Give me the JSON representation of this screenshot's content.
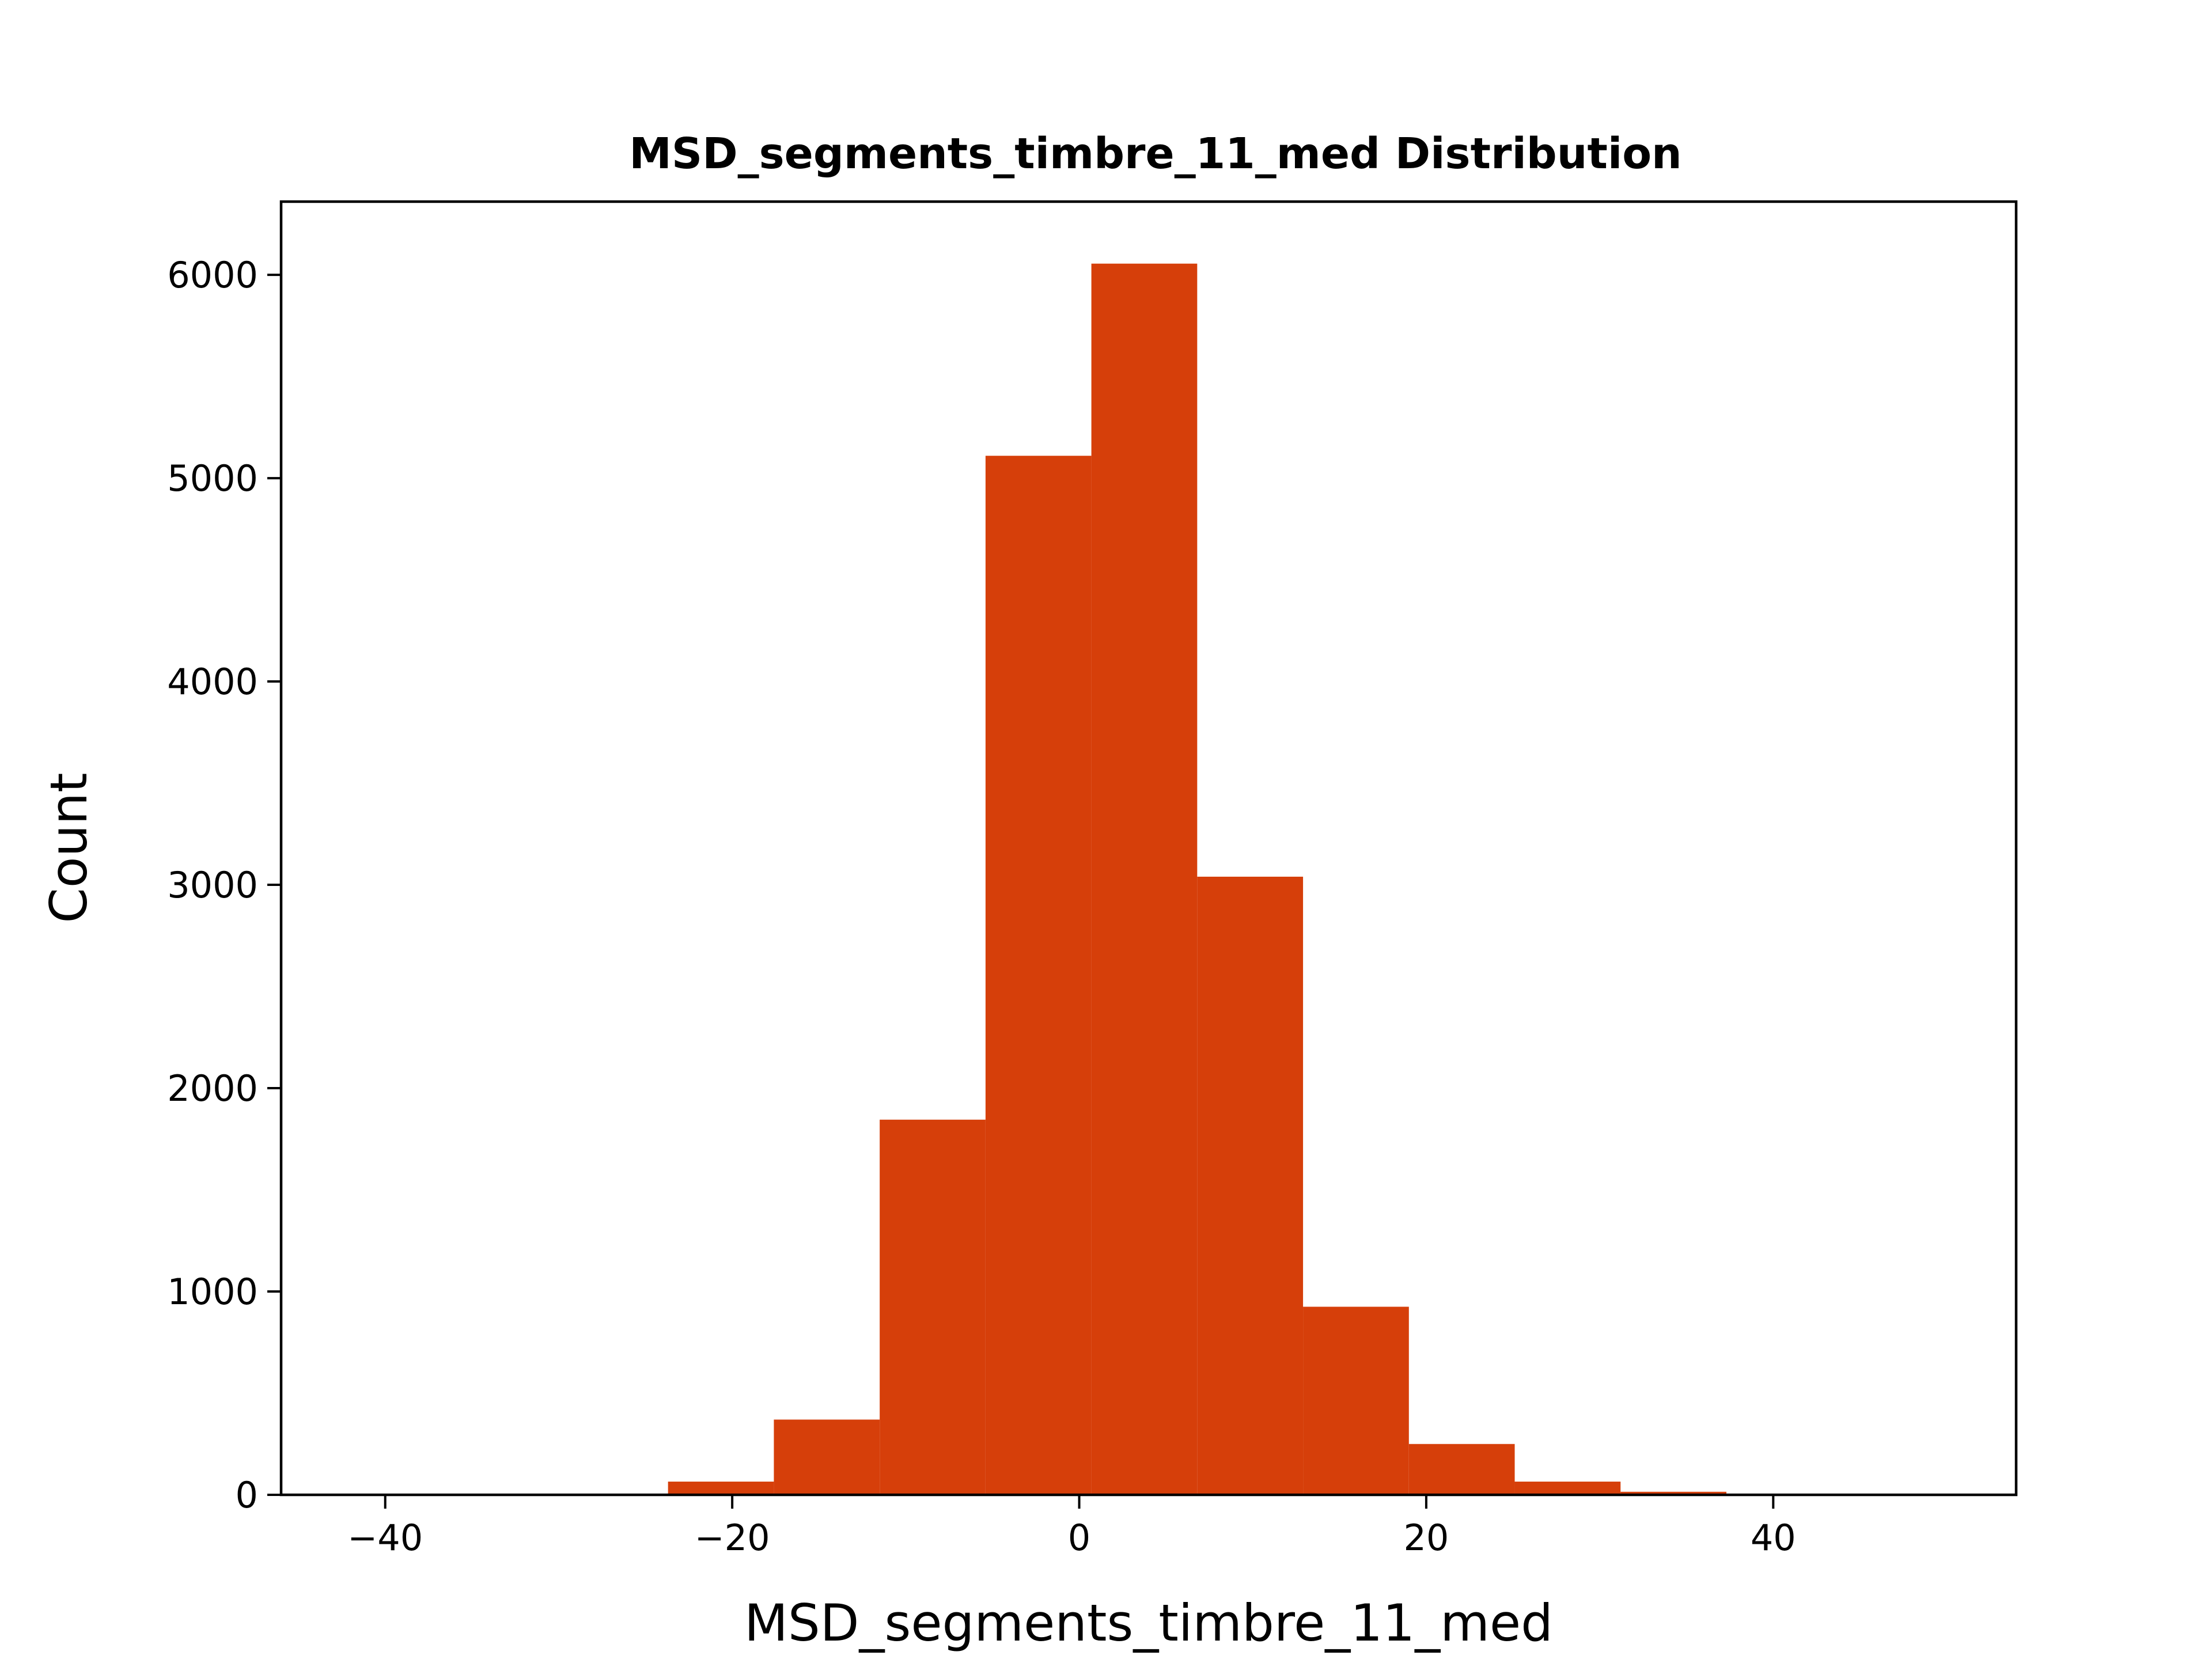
{
  "chart_data": {
    "type": "bar",
    "title": "MSD_segments_timbre_11_med Distribution",
    "xlabel": "MSD_segments_timbre_11_med",
    "ylabel": "Count",
    "xlim": [
      -46,
      54
    ],
    "ylim": [
      0,
      6360
    ],
    "x_ticks": [
      -40,
      -20,
      0,
      20,
      40
    ],
    "x_tick_labels": [
      "−40",
      "−20",
      "0",
      "20",
      "40"
    ],
    "y_ticks": [
      0,
      1000,
      2000,
      3000,
      4000,
      5000,
      6000
    ],
    "y_tick_labels": [
      "0",
      "1000",
      "2000",
      "3000",
      "4000",
      "5000",
      "6000"
    ],
    "bar_color": "#d63f0a",
    "grid": false,
    "bins": [
      {
        "x0": -42.0,
        "x1": -35.9,
        "count": 1
      },
      {
        "x0": -35.9,
        "x1": -29.8,
        "count": 2
      },
      {
        "x0": -29.8,
        "x1": -23.7,
        "count": 5
      },
      {
        "x0": -23.7,
        "x1": -17.6,
        "count": 65
      },
      {
        "x0": -17.6,
        "x1": -11.5,
        "count": 370
      },
      {
        "x0": -11.5,
        "x1": -5.4,
        "count": 1845
      },
      {
        "x0": -5.4,
        "x1": 0.7,
        "count": 5110
      },
      {
        "x0": 0.7,
        "x1": 6.8,
        "count": 6055
      },
      {
        "x0": 6.8,
        "x1": 12.9,
        "count": 3040
      },
      {
        "x0": 12.9,
        "x1": 19.0,
        "count": 925
      },
      {
        "x0": 19.0,
        "x1": 25.1,
        "count": 250
      },
      {
        "x0": 25.1,
        "x1": 31.2,
        "count": 65
      },
      {
        "x0": 31.2,
        "x1": 37.3,
        "count": 15
      },
      {
        "x0": 37.3,
        "x1": 43.4,
        "count": 3
      },
      {
        "x0": 43.4,
        "x1": 49.5,
        "count": 1
      }
    ]
  }
}
